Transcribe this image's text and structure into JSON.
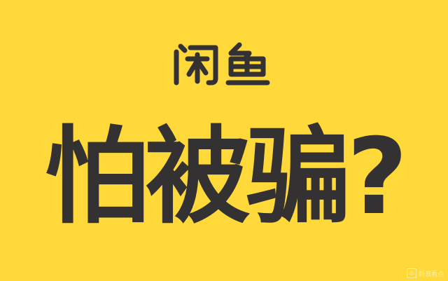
{
  "brand": {
    "logo_text": "闲鱼",
    "text_color": "#333131",
    "background_color": "#ffd83a"
  },
  "headline": {
    "text": "怕被骗?"
  },
  "watermark": {
    "icon": "watermark-logo-icon",
    "text": "新浪看点"
  }
}
